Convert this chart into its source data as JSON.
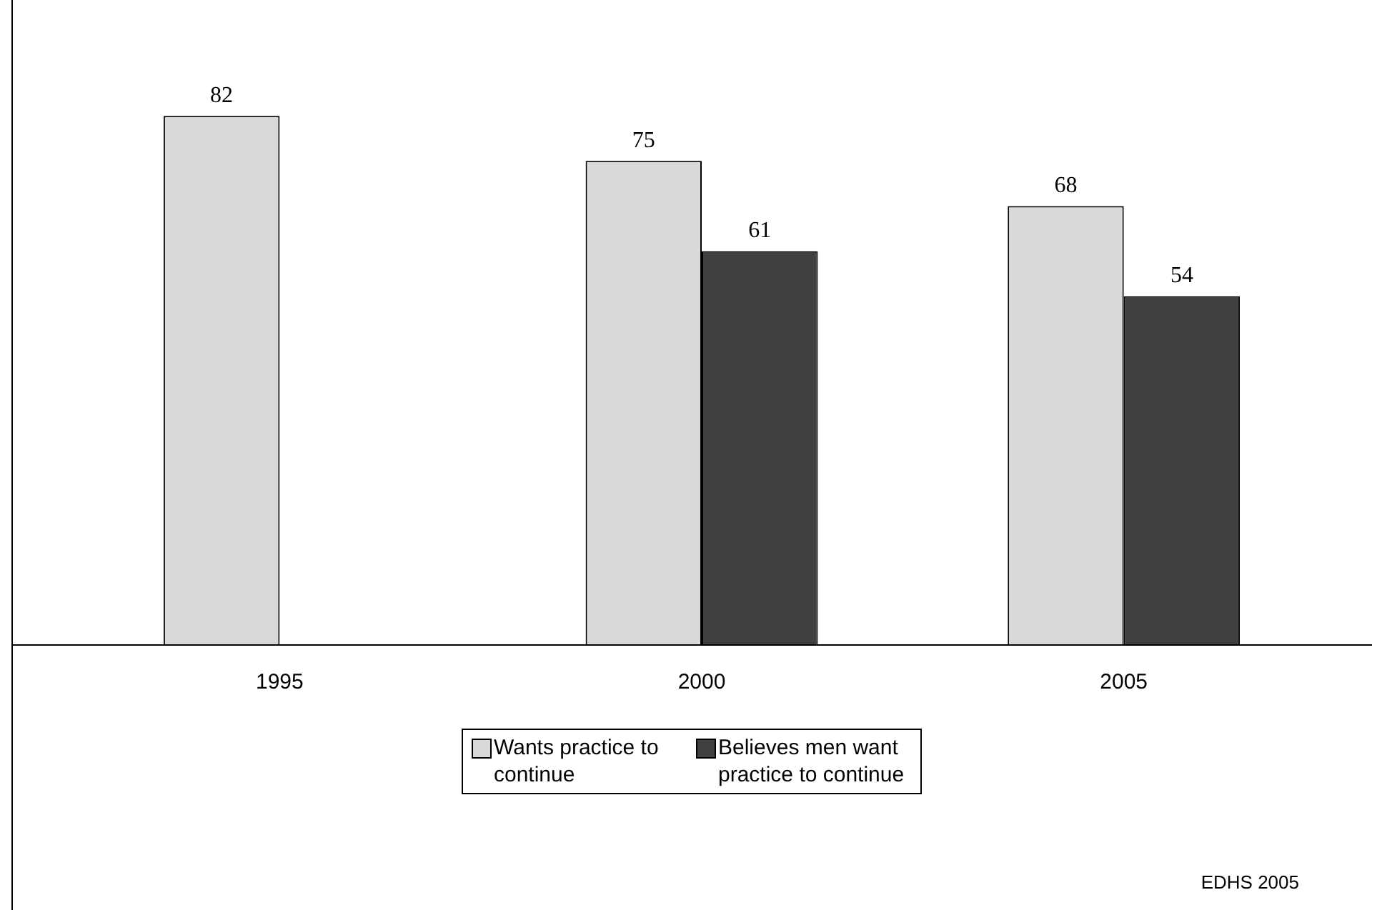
{
  "chart_data": {
    "type": "bar",
    "categories": [
      "1995",
      "2000",
      "2005"
    ],
    "series": [
      {
        "name": "Wants practice to continue",
        "color": "#d9d9d9",
        "values": [
          82,
          75,
          68
        ]
      },
      {
        "name": "Believes men want practice to continue",
        "color": "#404040",
        "values": [
          null,
          61,
          54
        ]
      }
    ],
    "tick_labels": "x",
    "data_labels": true,
    "grid": false,
    "legend": "bottom",
    "annotations": [
      "EDHS 2005"
    ]
  }
}
